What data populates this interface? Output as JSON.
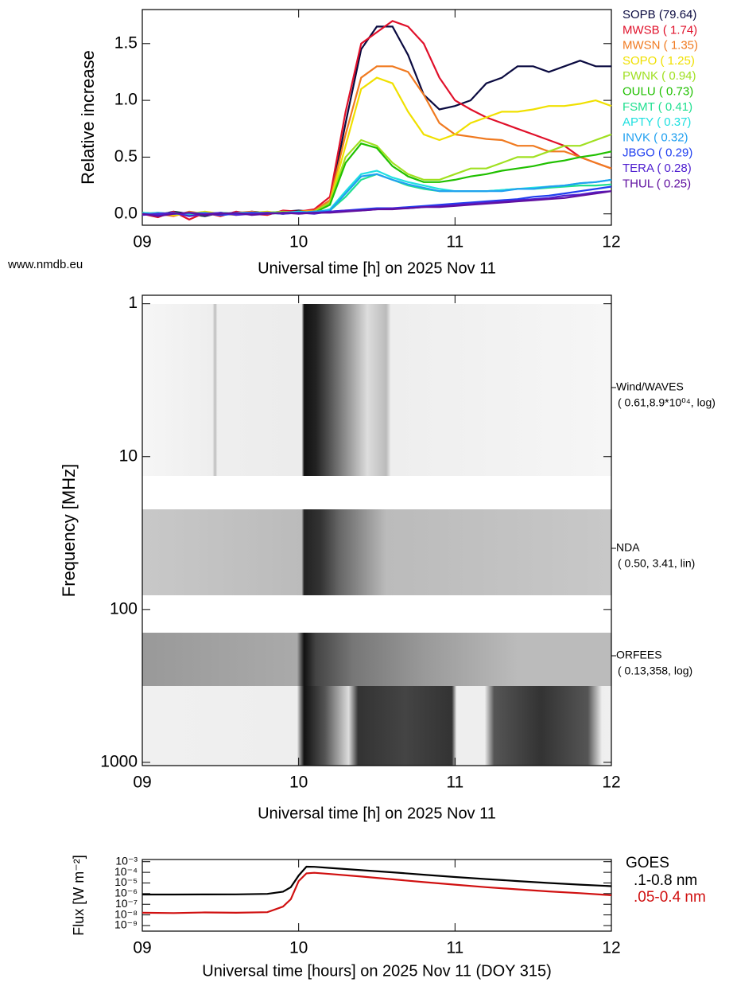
{
  "chart_data": [
    {
      "type": "line",
      "source": "www.nmdb.eu",
      "xlabel": "Universal time [h] on 2025 Nov 11",
      "ylabel": "Relative increase",
      "x": [
        9,
        9.1,
        9.2,
        9.3,
        9.4,
        9.5,
        9.6,
        9.7,
        9.8,
        9.9,
        10,
        10.1,
        10.2,
        10.3,
        10.4,
        10.5,
        10.6,
        10.7,
        10.8,
        10.9,
        11,
        11.1,
        11.2,
        11.3,
        11.4,
        11.5,
        11.6,
        11.7,
        11.8,
        11.9,
        12
      ],
      "xlim": [
        9,
        12
      ],
      "xticks": [
        {
          "value": 9,
          "label": "09"
        },
        10,
        11,
        12
      ],
      "ylim": [
        -0.1,
        1.8
      ],
      "yticks": [
        {
          "value": 0,
          "label": "0.0"
        },
        0.5,
        {
          "value": 1,
          "label": "1.0"
        },
        1.5
      ],
      "series": [
        {
          "name": "SOPB (79.64)",
          "color": "#0a0a40",
          "values": [
            0.01,
            -0.01,
            0.02,
            0,
            -0.02,
            0.01,
            0,
            0.02,
            0.01,
            0.02,
            0.03,
            0.02,
            0.1,
            0.8,
            1.45,
            1.65,
            1.65,
            1.4,
            1.05,
            0.92,
            0.95,
            1.0,
            1.15,
            1.2,
            1.3,
            1.3,
            1.25,
            1.3,
            1.35,
            1.3,
            1.3
          ]
        },
        {
          "name": "MWSB ( 1.74)",
          "color": "#e0102a",
          "values": [
            0,
            -0.03,
            0.02,
            -0.05,
            0.01,
            -0.02,
            0.02,
            0,
            -0.01,
            0.03,
            0.02,
            0.04,
            0.15,
            0.9,
            1.5,
            1.6,
            1.7,
            1.65,
            1.5,
            1.2,
            1.0,
            0.92,
            0.85,
            0.8,
            0.75,
            0.7,
            0.65,
            0.6,
            0.5,
            0.45,
            0.4
          ]
        },
        {
          "name": "MWSN ( 1.35)",
          "color": "#f07a20",
          "values": [
            0.01,
            0,
            -0.02,
            0.02,
            0,
            -0.01,
            0.01,
            0.02,
            0,
            0.01,
            0.02,
            0.03,
            0.12,
            0.7,
            1.2,
            1.3,
            1.3,
            1.25,
            1.05,
            0.8,
            0.7,
            0.68,
            0.66,
            0.65,
            0.6,
            0.6,
            0.55,
            0.55,
            0.5,
            0.45,
            0.4
          ]
        },
        {
          "name": "SOPO ( 1.25)",
          "color": "#f0e000",
          "values": [
            0,
            0.01,
            -0.01,
            0,
            0.02,
            0,
            -0.01,
            0.01,
            0.02,
            0,
            0.02,
            0.02,
            0.1,
            0.6,
            1.1,
            1.2,
            1.15,
            0.9,
            0.7,
            0.65,
            0.7,
            0.8,
            0.85,
            0.9,
            0.9,
            0.92,
            0.95,
            0.95,
            0.97,
            1.0,
            0.95
          ]
        },
        {
          "name": "PWNK ( 0.94)",
          "color": "#a0e020",
          "values": [
            0,
            0.01,
            0,
            -0.01,
            0.01,
            0,
            0.01,
            0,
            0.01,
            0.02,
            0.01,
            0.02,
            0.1,
            0.5,
            0.65,
            0.6,
            0.45,
            0.35,
            0.3,
            0.3,
            0.35,
            0.4,
            0.4,
            0.45,
            0.5,
            0.5,
            0.55,
            0.6,
            0.6,
            0.65,
            0.7
          ]
        },
        {
          "name": "OULU ( 0.73)",
          "color": "#20c000",
          "values": [
            0.01,
            0,
            0.01,
            0,
            -0.01,
            0.01,
            0,
            0.01,
            0.01,
            0,
            0.02,
            0.01,
            0.08,
            0.45,
            0.62,
            0.58,
            0.42,
            0.33,
            0.28,
            0.28,
            0.3,
            0.33,
            0.35,
            0.38,
            0.4,
            0.42,
            0.45,
            0.47,
            0.5,
            0.52,
            0.55
          ]
        },
        {
          "name": "FSMT ( 0.41)",
          "color": "#20e090",
          "values": [
            0,
            0,
            0.01,
            -0.01,
            0,
            0.01,
            0,
            0,
            0.01,
            0.01,
            0.01,
            0.02,
            0.03,
            0.15,
            0.3,
            0.35,
            0.3,
            0.25,
            0.22,
            0.2,
            0.2,
            0.2,
            0.2,
            0.21,
            0.22,
            0.22,
            0.23,
            0.24,
            0.25,
            0.25,
            0.26
          ]
        },
        {
          "name": "APTY ( 0.37)",
          "color": "#20e0e0",
          "values": [
            0.01,
            0,
            0,
            0.01,
            -0.01,
            0,
            0.01,
            0.01,
            0,
            0.01,
            0.02,
            0.01,
            0.04,
            0.2,
            0.35,
            0.38,
            0.32,
            0.28,
            0.25,
            0.22,
            0.2,
            0.2,
            0.2,
            0.21,
            0.22,
            0.23,
            0.24,
            0.25,
            0.27,
            0.28,
            0.3
          ]
        },
        {
          "name": "INVK ( 0.32)",
          "color": "#20a0f0",
          "values": [
            0,
            0.01,
            0,
            0,
            0.01,
            -0.01,
            0,
            0.01,
            0.01,
            0,
            0.01,
            0.02,
            0.03,
            0.18,
            0.33,
            0.35,
            0.3,
            0.26,
            0.23,
            0.2,
            0.2,
            0.2,
            0.2,
            0.2,
            0.22,
            0.22,
            0.24,
            0.25,
            0.27,
            0.28,
            0.3
          ]
        },
        {
          "name": "JBGO ( 0.29)",
          "color": "#2040f0",
          "values": [
            0,
            -0.01,
            0,
            0.01,
            0,
            -0.01,
            0,
            0.01,
            0,
            0.01,
            0.01,
            0.01,
            0.02,
            0.03,
            0.04,
            0.05,
            0.05,
            0.06,
            0.07,
            0.08,
            0.09,
            0.1,
            0.11,
            0.12,
            0.13,
            0.15,
            0.16,
            0.18,
            0.2,
            0.22,
            0.24
          ]
        },
        {
          "name": "TERA ( 0.28)",
          "color": "#5020d0",
          "values": [
            -0.01,
            0,
            0.01,
            -0.02,
            0,
            0.01,
            -0.01,
            0,
            0.01,
            0,
            0.01,
            0,
            0.02,
            0.03,
            0.03,
            0.04,
            0.05,
            0.05,
            0.06,
            0.07,
            0.08,
            0.09,
            0.1,
            0.11,
            0.12,
            0.13,
            0.14,
            0.16,
            0.17,
            0.19,
            0.2
          ]
        },
        {
          "name": "THUL ( 0.25)",
          "color": "#6010a0",
          "values": [
            0,
            -0.02,
            0,
            0.01,
            -0.01,
            0,
            0.01,
            -0.01,
            0,
            0.01,
            0,
            0.01,
            0.01,
            0.02,
            0.03,
            0.04,
            0.04,
            0.05,
            0.06,
            0.06,
            0.07,
            0.08,
            0.09,
            0.1,
            0.11,
            0.12,
            0.13,
            0.14,
            0.16,
            0.18,
            0.2
          ]
        }
      ]
    },
    {
      "type": "spectrogram",
      "xlabel": "Universal time [h] on 2025 Nov 11",
      "ylabel": "Frequency [MHz]",
      "xlim": [
        9,
        12
      ],
      "xticks": [
        {
          "value": 9,
          "label": "09"
        },
        10,
        11,
        12
      ],
      "y_log": true,
      "y_inverted": true,
      "ylim": [
        0.88,
        1050
      ],
      "yticks": [
        1,
        10,
        100,
        1000
      ],
      "instruments": [
        {
          "name": "Wind/WAVES",
          "params": "( 0.61,8.9*10⁰⁴, log)"
        },
        {
          "name": "NDA",
          "params": "( 0.50, 3.41, lin)"
        },
        {
          "name": "ORFEES",
          "params": "( 0.13,358, log)"
        }
      ]
    },
    {
      "type": "line",
      "xlabel": "Universal time [hours] on 2025 Nov 11 (DOY 315)",
      "ylabel": "Flux [W m⁻²]",
      "legend_title": "GOES",
      "x": [
        9,
        9.2,
        9.4,
        9.6,
        9.8,
        9.9,
        9.95,
        10,
        10.05,
        10.1,
        10.2,
        10.4,
        10.6,
        10.8,
        11,
        11.2,
        11.4,
        11.6,
        11.8,
        12
      ],
      "xlim": [
        9,
        12
      ],
      "xticks": [
        {
          "value": 9,
          "label": "09"
        },
        10,
        11,
        12
      ],
      "y_log": true,
      "ylim": [
        3e-10,
        0.0016
      ],
      "yticks": [
        {
          "value": 0.001,
          "label": "10⁻³"
        },
        {
          "value": 0.0001,
          "label": "10⁻⁴"
        },
        {
          "value": 1e-05,
          "label": "10⁻⁵"
        },
        {
          "value": 1e-06,
          "label": "10⁻⁶"
        },
        {
          "value": 1e-07,
          "label": "10⁻⁷"
        },
        {
          "value": 1e-08,
          "label": "10⁻⁸"
        },
        {
          "value": 1e-09,
          "label": "10⁻⁹"
        }
      ],
      "series": [
        {
          "name": ".1-0.8 nm",
          "color": "#000000",
          "values": [
            8.3e-07,
            8.3e-07,
            8.4e-07,
            8.5e-07,
            9.5e-07,
            1.5e-06,
            4e-06,
            5e-05,
            0.00034,
            0.00033,
            0.00026,
            0.00016,
            0.0001,
            6e-05,
            3.6e-05,
            2.3e-05,
            1.5e-05,
            1e-05,
            7e-06,
            5e-06
          ]
        },
        {
          "name": ".05-0.4 nm",
          "color": "#d01010",
          "values": [
            1.6e-08,
            1.5e-08,
            1.7e-08,
            1.6e-08,
            1.8e-08,
            6e-08,
            3e-07,
            1.5e-05,
            8e-05,
            9e-05,
            7e-05,
            4e-05,
            2.2e-05,
            1.2e-05,
            7e-06,
            4e-06,
            2.5e-06,
            1.6e-06,
            1.1e-06,
            7e-07
          ]
        }
      ]
    }
  ]
}
